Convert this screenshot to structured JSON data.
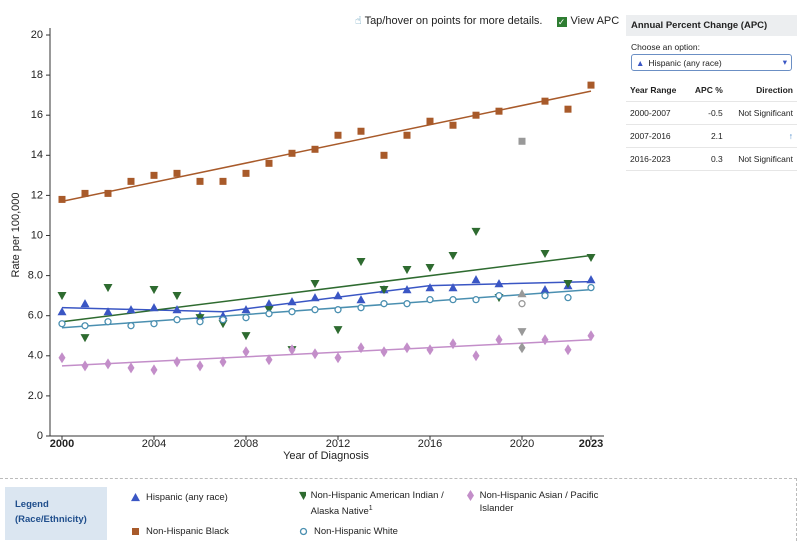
{
  "chart_data": {
    "type": "scatter",
    "x_label": "Year of Diagnosis",
    "y_label": "Rate per 100,000",
    "x": [
      2000,
      2001,
      2002,
      2003,
      2004,
      2005,
      2006,
      2007,
      2008,
      2009,
      2010,
      2011,
      2012,
      2013,
      2014,
      2015,
      2016,
      2017,
      2018,
      2019,
      2020,
      2021,
      2022,
      2023
    ],
    "xlim": [
      2000,
      2023
    ],
    "xticks": [
      2000,
      2004,
      2008,
      2012,
      2016,
      2020,
      2023
    ],
    "ylim": [
      0,
      20
    ],
    "yticks": [
      0,
      {
        "value": 2,
        "label": "2.0"
      },
      {
        "value": 4,
        "label": "4.0"
      },
      {
        "value": 6,
        "label": "6.0"
      },
      {
        "value": 8,
        "label": "8.0"
      },
      10,
      12,
      14,
      16,
      18,
      20
    ],
    "excluded_x": [
      2020
    ],
    "excluded_color": "#999999",
    "series": [
      {
        "name": "Hispanic (any race)",
        "color": "#3a56c4",
        "marker": "triangle-up",
        "values": [
          6.2,
          6.6,
          6.2,
          6.3,
          6.4,
          6.3,
          6.0,
          6.0,
          6.3,
          6.6,
          6.7,
          6.9,
          7.0,
          6.8,
          7.3,
          7.3,
          7.4,
          7.4,
          7.8,
          7.6,
          7.1,
          7.3,
          7.5,
          7.8
        ],
        "fit_x": [
          2000,
          2007,
          2016,
          2023
        ],
        "fit_values": [
          6.4,
          6.2,
          7.5,
          7.7
        ]
      },
      {
        "name": "Non-Hispanic American Indian / Alaska Native",
        "footnote": "1",
        "color": "#2e6b30",
        "marker": "triangle-down",
        "values": [
          7.0,
          4.9,
          7.4,
          null,
          7.3,
          7.0,
          5.9,
          5.6,
          5.0,
          6.3,
          4.3,
          7.6,
          5.3,
          8.7,
          7.3,
          8.3,
          8.4,
          9.0,
          10.2,
          6.9,
          5.2,
          9.1,
          7.6,
          8.9
        ],
        "fit_x": [
          2000,
          2023
        ],
        "fit_values": [
          5.7,
          9.0
        ]
      },
      {
        "name": "Non-Hispanic Asian / Pacific Islander",
        "color": "#c38ec9",
        "marker": "diamond",
        "values": [
          3.9,
          3.5,
          3.6,
          3.4,
          3.3,
          3.7,
          3.5,
          3.7,
          4.2,
          3.8,
          4.3,
          4.1,
          3.9,
          4.4,
          4.2,
          4.4,
          4.3,
          4.6,
          4.0,
          4.8,
          4.4,
          4.8,
          4.3,
          5.0
        ],
        "fit_x": [
          2000,
          2023
        ],
        "fit_values": [
          3.5,
          4.8
        ]
      },
      {
        "name": "Non-Hispanic Black",
        "color": "#a85a2a",
        "marker": "square",
        "values": [
          11.8,
          12.1,
          12.1,
          12.7,
          13.0,
          13.1,
          12.7,
          12.7,
          13.1,
          13.6,
          14.1,
          14.3,
          15.0,
          15.2,
          14.0,
          15.0,
          15.7,
          15.5,
          16.0,
          16.2,
          14.7,
          16.7,
          16.3,
          17.5
        ],
        "fit_x": [
          2000,
          2023
        ],
        "fit_values": [
          11.7,
          17.2
        ]
      },
      {
        "name": "Non-Hispanic White",
        "color": "#4a8fb0",
        "marker": "circle-open",
        "values": [
          5.6,
          5.5,
          5.7,
          5.5,
          5.6,
          5.8,
          5.7,
          5.8,
          5.9,
          6.1,
          6.2,
          6.3,
          6.3,
          6.4,
          6.6,
          6.6,
          6.8,
          6.8,
          6.8,
          7.0,
          6.6,
          7.0,
          6.9,
          7.4
        ],
        "fit_x": [
          2000,
          2023
        ],
        "fit_values": [
          5.4,
          7.3
        ]
      }
    ]
  },
  "toolbar": {
    "hint": "Tap/hover on points for more details.",
    "view_apc": "View APC"
  },
  "legend": {
    "title": "Legend (Race/Ethnicity)"
  },
  "apc_panel": {
    "title": "Annual Percent Change (APC)",
    "choose_label": "Choose an option:",
    "selected": "Hispanic (any race)",
    "headers": [
      "Year Range",
      "APC %",
      "Direction"
    ],
    "rows": [
      [
        "2000-2007",
        -0.5,
        "Not Significant"
      ],
      [
        "2007-2016",
        2.1,
        "↑"
      ],
      [
        "2016-2023",
        0.3,
        "Not Significant"
      ]
    ]
  }
}
